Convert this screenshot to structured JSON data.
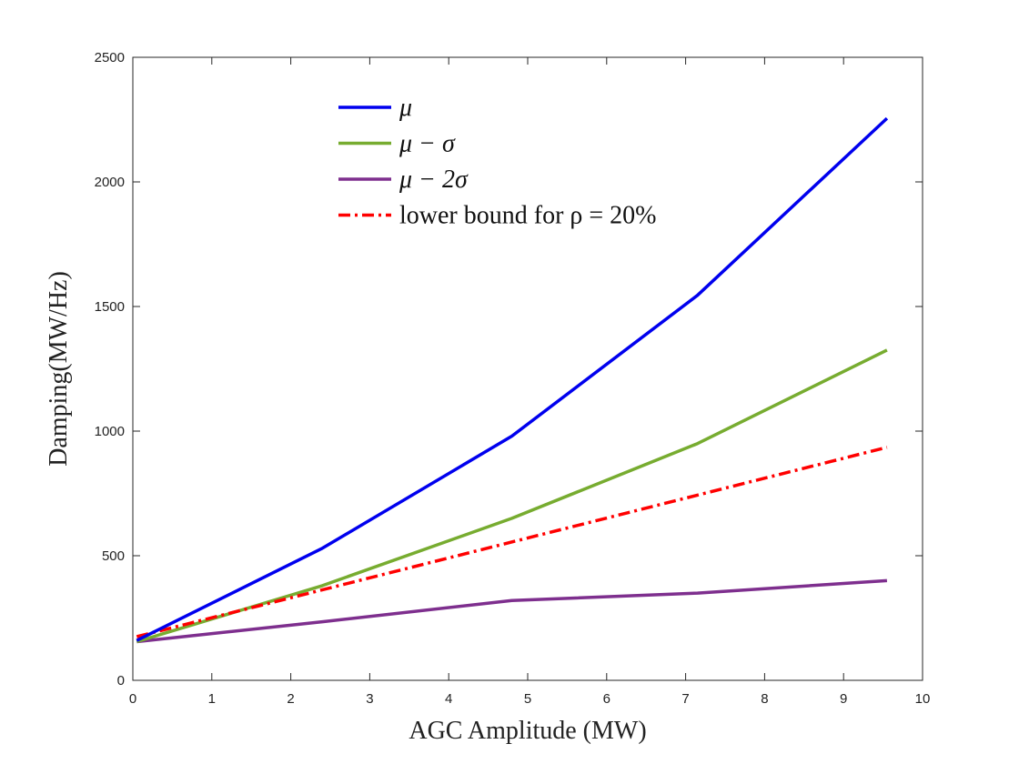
{
  "chart_data": {
    "type": "line",
    "xlabel": "AGC Amplitude (MW)",
    "ylabel": "Damping(MW/Hz)",
    "xlim": [
      0,
      10
    ],
    "ylim": [
      0,
      2500
    ],
    "xticks": [
      0,
      1,
      2,
      3,
      4,
      5,
      6,
      7,
      8,
      9,
      10
    ],
    "yticks": [
      0,
      500,
      1000,
      1500,
      2000,
      2500
    ],
    "grid": false,
    "legend_position": "top-center",
    "series": [
      {
        "name": "μ",
        "color": "#0000ee",
        "style": "solid",
        "x": [
          0.05,
          2.4,
          4.8,
          7.15,
          9.55
        ],
        "y": [
          160,
          530,
          980,
          1545,
          2255
        ]
      },
      {
        "name": "μ − σ",
        "color": "#77ac30",
        "style": "solid",
        "x": [
          0.05,
          2.4,
          4.8,
          7.15,
          9.55
        ],
        "y": [
          155,
          380,
          650,
          950,
          1325
        ]
      },
      {
        "name": "μ − 2σ",
        "color": "#7e2f8e",
        "style": "solid",
        "x": [
          0.05,
          2.4,
          4.8,
          7.15,
          9.55
        ],
        "y": [
          155,
          235,
          320,
          350,
          400
        ]
      },
      {
        "name": "lower bound for ρ = 20%",
        "color": "#ff0000",
        "style": "dashdot",
        "x": [
          0.05,
          9.55
        ],
        "y": [
          175,
          935
        ]
      }
    ]
  }
}
